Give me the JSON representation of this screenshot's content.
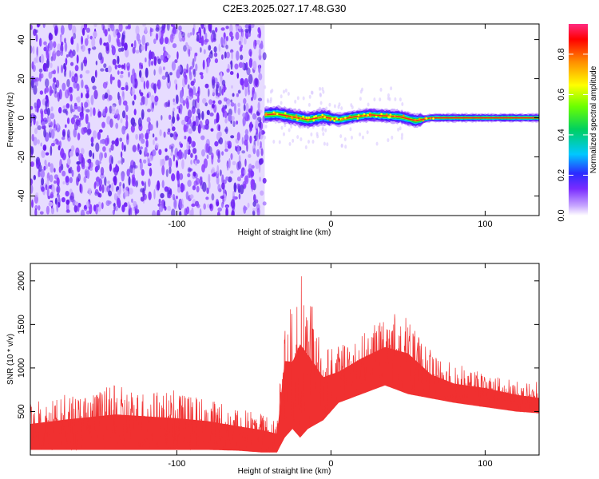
{
  "chart_data": [
    {
      "type": "heatmap",
      "title": "C2E3.2025.027.17.48.G30",
      "xlabel": "Height of straight line (km)",
      "ylabel": "Frequency (Hz)",
      "xlim": [
        -195,
        135
      ],
      "ylim": [
        -50,
        48
      ],
      "xticks": [
        -100,
        0,
        100
      ],
      "yticks": [
        -40,
        -20,
        0,
        20,
        40
      ],
      "noise_region": {
        "x_from": -195,
        "x_to": -43,
        "y_from": -50,
        "y_to": 48
      },
      "signal_band": {
        "x_from": -43,
        "x_to": 135,
        "center": [
          {
            "x": -43,
            "y": 1.5
          },
          {
            "x": -35,
            "y": 2.0
          },
          {
            "x": -25,
            "y": 0.5
          },
          {
            "x": -15,
            "y": -1.0
          },
          {
            "x": -5,
            "y": 0.5
          },
          {
            "x": 5,
            "y": -1.0
          },
          {
            "x": 15,
            "y": 0.5
          },
          {
            "x": 25,
            "y": 1.5
          },
          {
            "x": 35,
            "y": 1.0
          },
          {
            "x": 45,
            "y": 0.5
          },
          {
            "x": 55,
            "y": -1.5
          },
          {
            "x": 65,
            "y": 0.0
          },
          {
            "x": 80,
            "y": 0.0
          },
          {
            "x": 100,
            "y": 0.0
          },
          {
            "x": 135,
            "y": 0.0
          }
        ]
      },
      "colorbar": {
        "label": "Normalized spectral amplitude",
        "range": [
          0.0,
          0.95
        ],
        "ticks": [
          0.0,
          0.2,
          0.4,
          0.6,
          0.8
        ],
        "tick_labels": [
          "0.0",
          "0.2",
          "0.4",
          "0.6",
          "0.8"
        ],
        "colors": [
          "#ffffff",
          "#c8a8ff",
          "#7a2cff",
          "#2b2bff",
          "#00c8ff",
          "#00d060",
          "#6cff00",
          "#ffff00",
          "#ff9000",
          "#ff0000",
          "#ff2a80"
        ]
      },
      "noise_color": "#7a2cff"
    },
    {
      "type": "line",
      "title": "",
      "xlabel": "Height of straight line (km)",
      "ylabel": "SNR (10 * v/v)",
      "xlim": [
        -195,
        135
      ],
      "ylim": [
        0,
        2200
      ],
      "xticks": [
        -100,
        0,
        100
      ],
      "yticks": [
        500,
        1000,
        1500,
        2000
      ],
      "series": [
        {
          "color": "#f03030",
          "envelope": [
            {
              "x": -195,
              "low": 60,
              "high": 600
            },
            {
              "x": -170,
              "low": 60,
              "high": 700
            },
            {
              "x": -140,
              "low": 60,
              "high": 800
            },
            {
              "x": -120,
              "low": 60,
              "high": 760
            },
            {
              "x": -100,
              "low": 60,
              "high": 720
            },
            {
              "x": -80,
              "low": 60,
              "high": 660
            },
            {
              "x": -60,
              "low": 50,
              "high": 560
            },
            {
              "x": -45,
              "low": 30,
              "high": 500
            },
            {
              "x": -35,
              "low": 30,
              "high": 420
            },
            {
              "x": -30,
              "low": 200,
              "high": 1800
            },
            {
              "x": -25,
              "low": 300,
              "high": 1700
            },
            {
              "x": -20,
              "low": 200,
              "high": 2150
            },
            {
              "x": -15,
              "low": 300,
              "high": 1850
            },
            {
              "x": -5,
              "low": 400,
              "high": 1300
            },
            {
              "x": 5,
              "low": 600,
              "high": 1250
            },
            {
              "x": 20,
              "low": 700,
              "high": 1450
            },
            {
              "x": 35,
              "low": 800,
              "high": 1600
            },
            {
              "x": 50,
              "low": 700,
              "high": 1550
            },
            {
              "x": 65,
              "low": 650,
              "high": 1150
            },
            {
              "x": 80,
              "low": 600,
              "high": 1000
            },
            {
              "x": 100,
              "low": 550,
              "high": 950
            },
            {
              "x": 120,
              "low": 500,
              "high": 850
            },
            {
              "x": 135,
              "low": 480,
              "high": 800
            }
          ]
        }
      ]
    }
  ]
}
